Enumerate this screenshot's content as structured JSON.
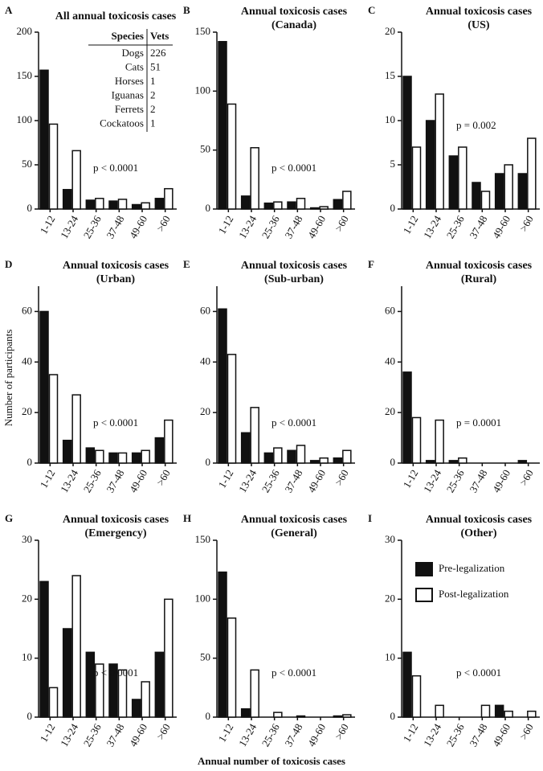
{
  "ylabel": "Number of participants",
  "xlabel": "Annual number of toxicosis cases",
  "chart_data": [
    {
      "type": "bar",
      "panel": "A",
      "title": "All annual toxicosis cases",
      "annotation": "p < 0.0001",
      "categories": [
        "1-12",
        "13-24",
        "25-36",
        "37-48",
        "49-60",
        ">60"
      ],
      "series": [
        {
          "color": "#111111",
          "values": [
            157,
            22,
            10,
            9,
            5,
            12
          ]
        },
        {
          "color": "#ffffff",
          "values": [
            96,
            66,
            12,
            11,
            7,
            23
          ]
        }
      ],
      "ylim": [
        0,
        200
      ],
      "yticks": [
        0,
        50,
        100,
        150,
        200
      ],
      "table": {
        "columns": [
          "Species",
          "Vets"
        ],
        "rows": [
          [
            "Dogs",
            226
          ],
          [
            "Cats",
            51
          ],
          [
            "Horses",
            1
          ],
          [
            "Iguanas",
            2
          ],
          [
            "Ferrets",
            2
          ],
          [
            "Cockatoos",
            1
          ]
        ]
      }
    },
    {
      "type": "bar",
      "panel": "B",
      "title": "Annual toxicosis cases (Canada)",
      "annotation": "p < 0.0001",
      "categories": [
        "1-12",
        "13-24",
        "25-36",
        "37-48",
        "49-60",
        ">60"
      ],
      "series": [
        {
          "color": "#111111",
          "values": [
            142,
            11,
            5,
            6,
            1,
            8
          ]
        },
        {
          "color": "#ffffff",
          "values": [
            89,
            52,
            6,
            9,
            2,
            15
          ]
        }
      ],
      "ylim": [
        0,
        150
      ],
      "yticks": [
        0,
        50,
        100,
        150
      ]
    },
    {
      "type": "bar",
      "panel": "C",
      "title": "Annual toxicosis cases (US)",
      "annotation": "p = 0.002",
      "categories": [
        "1-12",
        "13-24",
        "25-36",
        "37-48",
        "49-60",
        ">60"
      ],
      "series": [
        {
          "color": "#111111",
          "values": [
            15,
            10,
            6,
            3,
            4,
            4
          ]
        },
        {
          "color": "#ffffff",
          "values": [
            7,
            13,
            7,
            2,
            5,
            8
          ]
        }
      ],
      "ylim": [
        0,
        20
      ],
      "yticks": [
        0,
        5,
        10,
        15,
        20
      ]
    },
    {
      "type": "bar",
      "panel": "D",
      "title": "Annual toxicosis cases (Urban)",
      "annotation": "p < 0.0001",
      "categories": [
        "1-12",
        "13-24",
        "25-36",
        "37-48",
        "49-60",
        ">60"
      ],
      "series": [
        {
          "color": "#111111",
          "values": [
            60,
            9,
            6,
            4,
            4,
            10
          ]
        },
        {
          "color": "#ffffff",
          "values": [
            35,
            27,
            5,
            4,
            5,
            17
          ]
        }
      ],
      "ylim": [
        0,
        70
      ],
      "yticks": [
        0,
        20,
        40,
        60
      ]
    },
    {
      "type": "bar",
      "panel": "E",
      "title": "Annual toxicosis cases (Sub-urban)",
      "annotation": "p < 0.0001",
      "categories": [
        "1-12",
        "13-24",
        "25-36",
        "37-48",
        "49-60",
        ">60"
      ],
      "series": [
        {
          "color": "#111111",
          "values": [
            61,
            12,
            4,
            5,
            1,
            2
          ]
        },
        {
          "color": "#ffffff",
          "values": [
            43,
            22,
            6,
            7,
            2,
            5
          ]
        }
      ],
      "ylim": [
        0,
        70
      ],
      "yticks": [
        0,
        20,
        40,
        60
      ]
    },
    {
      "type": "bar",
      "panel": "F",
      "title": "Annual toxicosis cases (Rural)",
      "annotation": "p = 0.0001",
      "categories": [
        "1-12",
        "13-24",
        "25-36",
        "37-48",
        "49-60",
        ">60"
      ],
      "series": [
        {
          "color": "#111111",
          "values": [
            36,
            1,
            1,
            0,
            0,
            1
          ]
        },
        {
          "color": "#ffffff",
          "values": [
            18,
            17,
            2,
            0,
            0,
            0
          ]
        }
      ],
      "ylim": [
        0,
        70
      ],
      "yticks": [
        0,
        20,
        40,
        60
      ]
    },
    {
      "type": "bar",
      "panel": "G",
      "title": "Annual toxicosis cases (Emergency)",
      "annotation": "p < 0.0001",
      "categories": [
        "1-12",
        "13-24",
        "25-36",
        "37-48",
        "49-60",
        ">60"
      ],
      "series": [
        {
          "color": "#111111",
          "values": [
            23,
            15,
            11,
            9,
            3,
            11
          ]
        },
        {
          "color": "#ffffff",
          "values": [
            5,
            24,
            9,
            8,
            6,
            20
          ]
        }
      ],
      "ylim": [
        0,
        30
      ],
      "yticks": [
        0,
        10,
        20,
        30
      ]
    },
    {
      "type": "bar",
      "panel": "H",
      "title": "Annual toxicosis cases (General)",
      "annotation": "p < 0.0001",
      "categories": [
        "1-12",
        "13-24",
        "25-36",
        "37-48",
        "49-60",
        ">60"
      ],
      "series": [
        {
          "color": "#111111",
          "values": [
            123,
            7,
            0,
            0,
            0,
            1
          ]
        },
        {
          "color": "#ffffff",
          "values": [
            84,
            40,
            4,
            1,
            0,
            2
          ]
        }
      ],
      "ylim": [
        0,
        150
      ],
      "yticks": [
        0,
        50,
        100,
        150
      ]
    },
    {
      "type": "bar",
      "panel": "I",
      "title": "Annual toxicosis cases (Other)",
      "annotation": "p < 0.0001",
      "categories": [
        "1-12",
        "13-24",
        "25-36",
        "37-48",
        "49-60",
        ">60"
      ],
      "series": [
        {
          "name": "Pre-legalization",
          "color": "#111111",
          "values": [
            11,
            0,
            0,
            0,
            2,
            0
          ]
        },
        {
          "name": "Post-legalization",
          "color": "#ffffff",
          "values": [
            7,
            2,
            0,
            2,
            1,
            1
          ]
        }
      ],
      "ylim": [
        0,
        30
      ],
      "yticks": [
        0,
        10,
        20,
        30
      ],
      "legend": "upper right"
    }
  ]
}
